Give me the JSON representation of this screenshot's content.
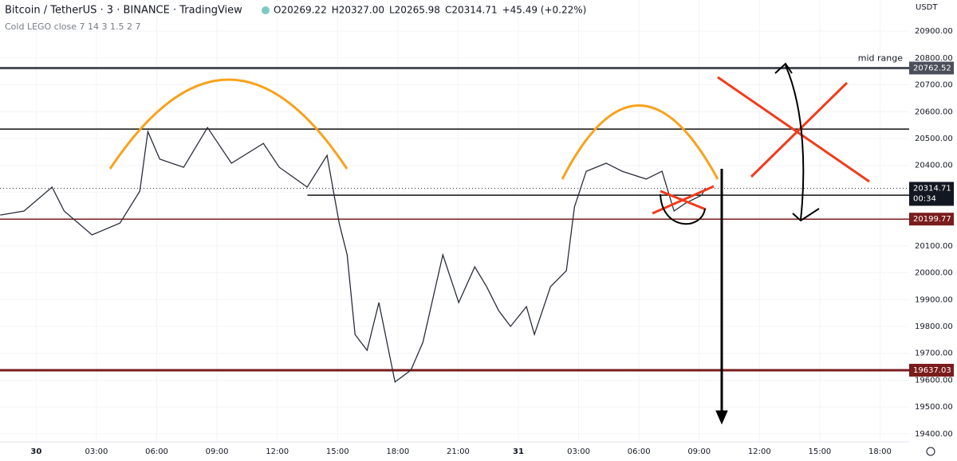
{
  "header": {
    "symbol": "Bitcoin / TetherUS · 3 · BINANCE · TradingView",
    "ohlc": [
      "O20269.22",
      "H20327.00",
      "L20265.98",
      "C20314.71",
      "+45.49 (+0.22%)"
    ],
    "indicator": "Cold LEGO close 7 14 3 1.5 2 7"
  },
  "chart_data": {
    "type": "line",
    "currency": "USDT",
    "x": [
      -1.79,
      -0.6,
      0.79,
      1.39,
      2.78,
      4.17,
      5.16,
      5.56,
      6.15,
      7.34,
      8.53,
      9.72,
      11.31,
      12.1,
      13.49,
      14.48,
      15.08,
      15.48,
      15.87,
      16.47,
      17.06,
      17.86,
      18.65,
      19.25,
      20.24,
      21.03,
      21.83,
      22.42,
      23.02,
      23.61,
      24.4,
      24.8,
      25.6,
      26.39,
      26.79,
      27.38,
      28.37,
      29.17,
      30.36,
      31.15,
      31.75,
      32.34,
      33.13,
      33.29
    ],
    "values": [
      20215,
      20230,
      20319,
      20230,
      20141,
      20185,
      20304,
      20526,
      20423,
      20393,
      20541,
      20408,
      20482,
      20393,
      20319,
      20437,
      20185,
      20067,
      19770,
      19711,
      19889,
      19593,
      19637,
      19741,
      20067,
      19889,
      20022,
      19948,
      19859,
      19800,
      19874,
      19770,
      19948,
      20008,
      20245,
      20378,
      20408,
      20378,
      20349,
      20378,
      20230,
      20260,
      20289,
      20314.71
    ],
    "color": "#2a2e39",
    "xlim": [
      -1.8,
      43.45
    ],
    "ylim": [
      19370,
      21016
    ],
    "xticks": [
      {
        "value": 0,
        "label": "30"
      },
      {
        "value": 3,
        "label": "03:00"
      },
      {
        "value": 6,
        "label": "06:00"
      },
      {
        "value": 9,
        "label": "09:00"
      },
      {
        "value": 12,
        "label": "12:00"
      },
      {
        "value": 15,
        "label": "15:00"
      },
      {
        "value": 18,
        "label": "18:00"
      },
      {
        "value": 21,
        "label": "21:00"
      },
      {
        "value": 24,
        "label": "31"
      },
      {
        "value": 27,
        "label": "03:00"
      },
      {
        "value": 30,
        "label": "06:00"
      },
      {
        "value": 33,
        "label": "09:00"
      },
      {
        "value": 36,
        "label": "12:00"
      },
      {
        "value": 39,
        "label": "15:00"
      },
      {
        "value": 42,
        "label": "18:00"
      }
    ],
    "yticks": [
      {
        "value": 19400,
        "label": "19400.00"
      },
      {
        "value": 19500,
        "label": "19500.00"
      },
      {
        "value": 19600,
        "label": "19600.00"
      },
      {
        "value": 19700,
        "label": "19700.00"
      },
      {
        "value": 19800,
        "label": "19800.00"
      },
      {
        "value": 19900,
        "label": "19900.00"
      },
      {
        "value": 20000,
        "label": "20000.00"
      },
      {
        "value": 20100,
        "label": "20100.00"
      },
      {
        "value": 20200,
        "label": "20200.00"
      },
      {
        "value": 20300,
        "label": "20300.00"
      },
      {
        "value": 20400,
        "label": "20400.00"
      },
      {
        "value": 20500,
        "label": "20500.00"
      },
      {
        "value": 20600,
        "label": "20600.00"
      },
      {
        "value": 20700,
        "label": "20700.00"
      },
      {
        "value": 20800,
        "label": "20800.00"
      },
      {
        "value": 20900,
        "label": "20900.00"
      }
    ],
    "levels": [
      {
        "value": 20762.52,
        "color": "#4a4f5a",
        "thick": true,
        "tag": true,
        "label": "mid range"
      },
      {
        "value": 20535,
        "color": "#111111"
      },
      {
        "value": 20289,
        "color": "#111111",
        "from": 13.5
      },
      {
        "value": 20199.77,
        "color": "#7a1c1c",
        "tag": true
      },
      {
        "value": 19637.03,
        "color": "#7a1c1c",
        "thick": true,
        "tag": true
      }
    ],
    "last_price": {
      "value": 20314.71,
      "countdown": "00:34"
    }
  }
}
